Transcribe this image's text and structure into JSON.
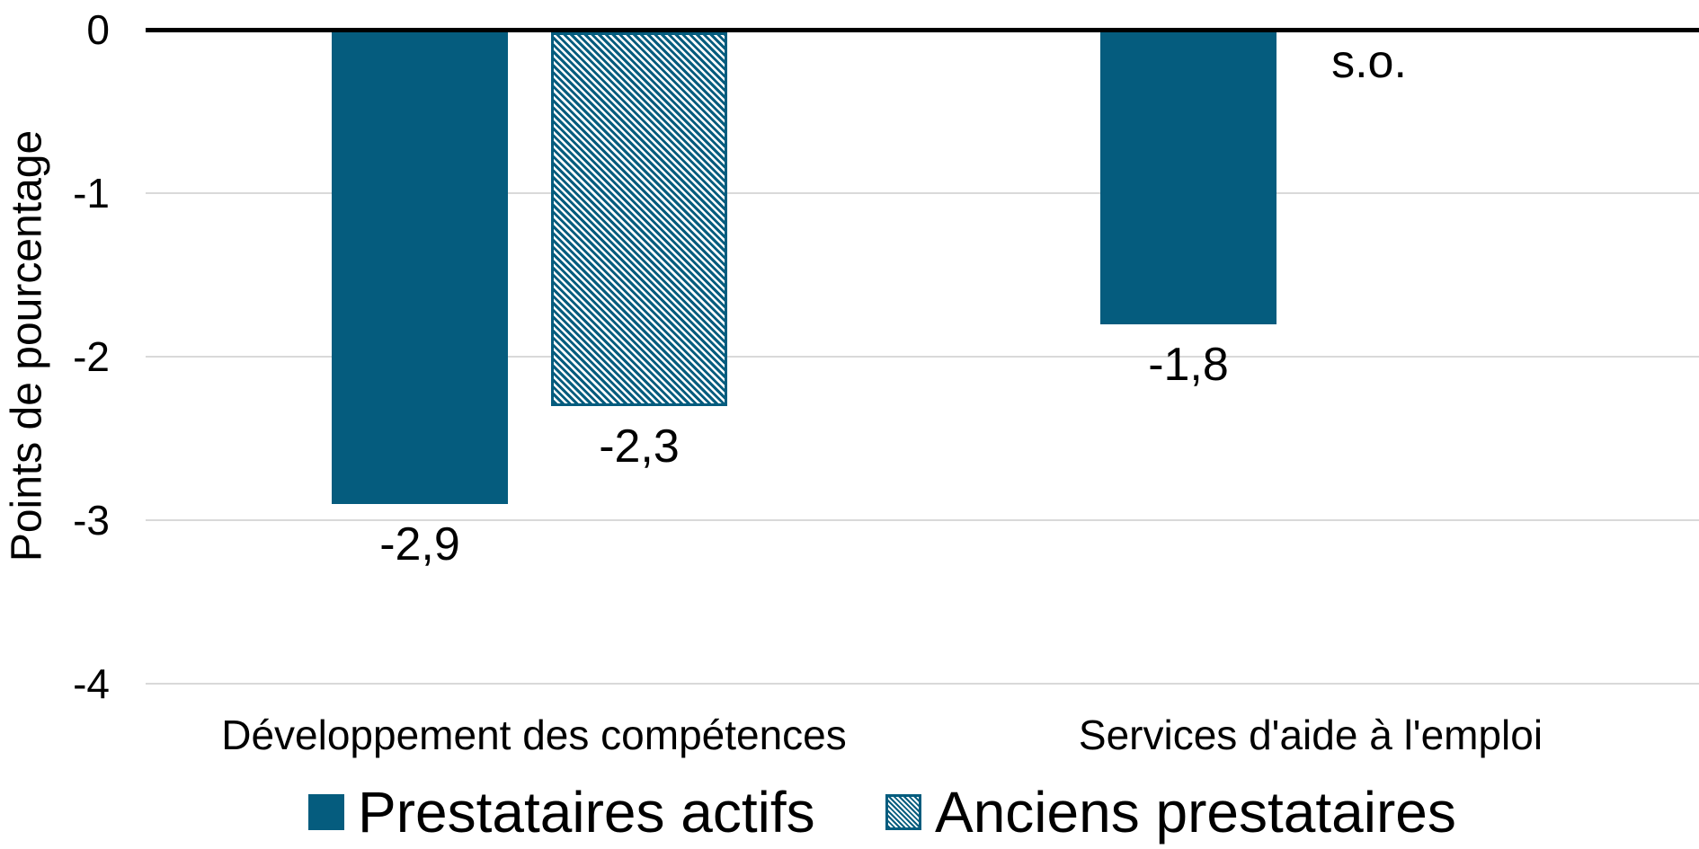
{
  "chart_data": {
    "type": "bar",
    "title": "",
    "xlabel": "",
    "ylabel": "Points de pourcentage",
    "categories": [
      "Développement des compétences",
      "Services d'aide à l'emploi"
    ],
    "series": [
      {
        "name": "Prestataires actifs",
        "pattern": "solid",
        "values": [
          -2.9,
          -1.8
        ]
      },
      {
        "name": "Anciens prestataires",
        "pattern": "hatched",
        "values": [
          -2.3,
          null
        ]
      }
    ],
    "value_labels": [
      [
        "-2,9",
        "-1,8"
      ],
      [
        "-2,3",
        "s.o."
      ]
    ],
    "na_label": "s.o.",
    "yticks": [
      0,
      -1,
      -2,
      -3,
      -4
    ],
    "ytick_labels": [
      "0",
      "-1",
      "-2",
      "-3",
      "-4"
    ],
    "ylim": [
      -4.3,
      0
    ],
    "grid": true,
    "legend_position": "bottom",
    "colors": {
      "bar": "#055C7E",
      "gridline": "#D9D9D9",
      "axis_line": "#000000",
      "text": "#000000",
      "background": "#FFFFFF"
    }
  }
}
